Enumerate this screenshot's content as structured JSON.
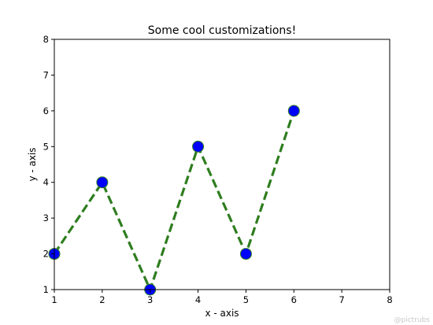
{
  "chart_data": {
    "type": "line",
    "title": "Some cool customizations!",
    "xlabel": "x - axis",
    "ylabel": "y - axis",
    "xlim": [
      1,
      8
    ],
    "ylim": [
      1,
      8
    ],
    "xticks": [
      1,
      2,
      3,
      4,
      5,
      6,
      7,
      8
    ],
    "yticks": [
      1,
      2,
      3,
      4,
      5,
      6,
      7,
      8
    ],
    "grid": false,
    "series": [
      {
        "x": [
          1,
          2,
          3,
          4,
          5,
          6
        ],
        "y": [
          2,
          4,
          1,
          5,
          2,
          6
        ],
        "line_color": "#2e7d1f",
        "line_style": "dashed",
        "marker": "circle",
        "marker_color": "#0000ff",
        "marker_edge_color": "#2e7d1f"
      }
    ]
  },
  "watermark": "@pictrubs"
}
